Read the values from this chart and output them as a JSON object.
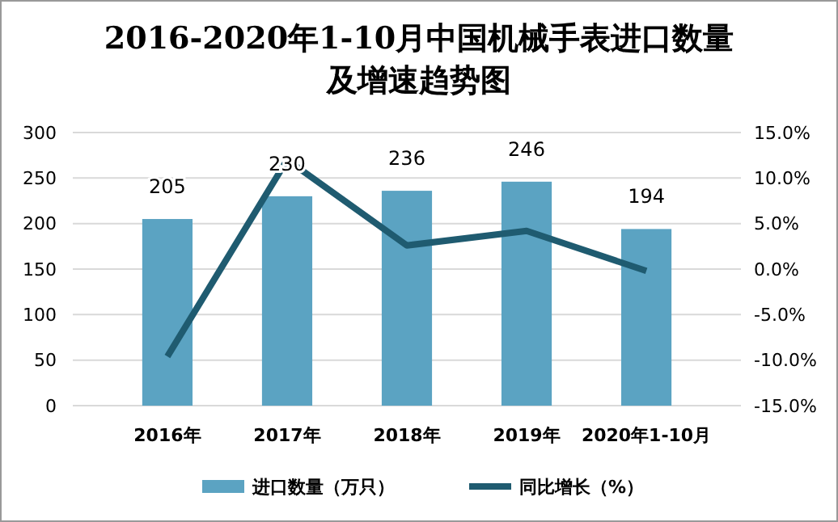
{
  "chart_data": {
    "type": "bar",
    "title": "2016-2020年1-10月中国机械手表进口数量及增速趋势图",
    "categories": [
      "2016年",
      "2017年",
      "2018年",
      "2019年",
      "2020年1-10月"
    ],
    "series": [
      {
        "name": "进口数量（万只）",
        "color": "#5ba3c2",
        "values": [
          205,
          230,
          236,
          246,
          194
        ],
        "value_labels": [
          "205",
          "230",
          "236",
          "246",
          "194"
        ]
      },
      {
        "name": "同比增长（%）",
        "type": "line",
        "axis": "y2",
        "color": "#1f5b70",
        "values": [
          -9.6,
          12.0,
          2.6,
          4.2,
          -0.2
        ]
      }
    ],
    "ylim": [
      0,
      300
    ],
    "yticks": [
      0,
      50,
      100,
      150,
      200,
      250,
      300
    ],
    "y2lim": [
      -15,
      15
    ],
    "y2ticks": [
      {
        "value": -15,
        "label": "-15.0%"
      },
      {
        "value": -10,
        "label": "-10.0%"
      },
      {
        "value": -5,
        "label": "-5.0%"
      },
      {
        "value": 0,
        "label": "0.0%"
      },
      {
        "value": 5,
        "label": "5.0%"
      },
      {
        "value": 10,
        "label": "10.0%"
      },
      {
        "value": 15,
        "label": "15.0%"
      }
    ],
    "grid": "y",
    "legend": "bottom",
    "marker": "none"
  }
}
